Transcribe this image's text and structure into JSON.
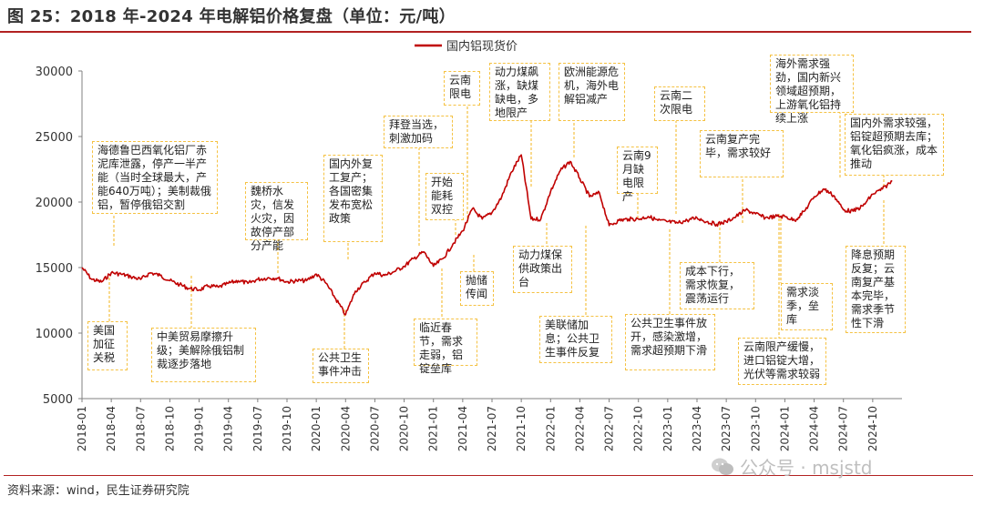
{
  "figure": {
    "title": "图 25：2018 年-2024 年电解铝价格复盘（单位：元/吨）",
    "source": "资料来源：wind，民生证券研究院",
    "watermark": "公众号 · msjstd"
  },
  "colors": {
    "series": "#c00000",
    "annotation_border": "#f5c243",
    "title_rule": "#b22222"
  },
  "chart_data": {
    "type": "line",
    "title": "图 25：2018 年-2024 年电解铝价格复盘（单位：元/吨）",
    "ylim": [
      5000,
      30000
    ],
    "yticks": [
      5000,
      10000,
      15000,
      20000,
      25000,
      30000
    ],
    "ytick_labels": [
      "5000",
      "10000",
      "15000",
      "20000",
      "25000",
      "30000"
    ],
    "xtick_labels": [
      "2018-01",
      "2018-04",
      "2018-07",
      "2018-10",
      "2019-01",
      "2019-04",
      "2019-07",
      "2019-10",
      "2020-01",
      "2020-04",
      "2020-07",
      "2020-10",
      "2021-01",
      "2021-04",
      "2021-07",
      "2021-10",
      "2022-01",
      "2022-04",
      "2022-07",
      "2022-10",
      "2023-01",
      "2023-04",
      "2023-07",
      "2023-10",
      "2024-01",
      "2024-04",
      "2024-07",
      "2024-10"
    ],
    "legend": {
      "placement": "top-center"
    },
    "grid": false,
    "series": [
      {
        "name": "国内铝现货价",
        "points": [
          [
            "2018-01",
            15000
          ],
          [
            "2018-02",
            14100
          ],
          [
            "2018-03",
            13900
          ],
          [
            "2018-04",
            14600
          ],
          [
            "2018-05",
            14500
          ],
          [
            "2018-06",
            14300
          ],
          [
            "2018-07",
            14100
          ],
          [
            "2018-08",
            14600
          ],
          [
            "2018-09",
            14400
          ],
          [
            "2018-10",
            14000
          ],
          [
            "2018-11",
            13700
          ],
          [
            "2018-12",
            13400
          ],
          [
            "2019-01",
            13300
          ],
          [
            "2019-02",
            13600
          ],
          [
            "2019-03",
            13500
          ],
          [
            "2019-04",
            13800
          ],
          [
            "2019-05",
            14000
          ],
          [
            "2019-06",
            13800
          ],
          [
            "2019-07",
            14100
          ],
          [
            "2019-08",
            14200
          ],
          [
            "2019-09",
            14200
          ],
          [
            "2019-10",
            13900
          ],
          [
            "2019-11",
            14000
          ],
          [
            "2019-12",
            14000
          ],
          [
            "2020-01",
            14500
          ],
          [
            "2020-02",
            13800
          ],
          [
            "2020-03",
            12600
          ],
          [
            "2020-04",
            11400
          ],
          [
            "2020-05",
            13200
          ],
          [
            "2020-06",
            13900
          ],
          [
            "2020-07",
            14600
          ],
          [
            "2020-08",
            14400
          ],
          [
            "2020-09",
            14700
          ],
          [
            "2020-10",
            15100
          ],
          [
            "2020-11",
            15700
          ],
          [
            "2020-12",
            16200
          ],
          [
            "2021-01",
            15100
          ],
          [
            "2021-02",
            15700
          ],
          [
            "2021-03",
            16800
          ],
          [
            "2021-04",
            17800
          ],
          [
            "2021-05",
            19500
          ],
          [
            "2021-06",
            18700
          ],
          [
            "2021-07",
            19200
          ],
          [
            "2021-08",
            20400
          ],
          [
            "2021-09",
            22300
          ],
          [
            "2021-10",
            23600
          ],
          [
            "2021-11",
            18700
          ],
          [
            "2021-12",
            18700
          ],
          [
            "2022-01",
            20800
          ],
          [
            "2022-02",
            22400
          ],
          [
            "2022-03",
            23100
          ],
          [
            "2022-04",
            21800
          ],
          [
            "2022-05",
            20400
          ],
          [
            "2022-06",
            20700
          ],
          [
            "2022-07",
            18200
          ],
          [
            "2022-08",
            18600
          ],
          [
            "2022-09",
            18700
          ],
          [
            "2022-10",
            18700
          ],
          [
            "2022-11",
            18900
          ],
          [
            "2022-12",
            18600
          ],
          [
            "2023-01",
            18500
          ],
          [
            "2023-02",
            18400
          ],
          [
            "2023-03",
            18600
          ],
          [
            "2023-04",
            18800
          ],
          [
            "2023-05",
            18500
          ],
          [
            "2023-06",
            18300
          ],
          [
            "2023-07",
            18500
          ],
          [
            "2023-08",
            18900
          ],
          [
            "2023-09",
            19400
          ],
          [
            "2023-10",
            19100
          ],
          [
            "2023-11",
            18800
          ],
          [
            "2023-12",
            18900
          ],
          [
            "2024-01",
            18900
          ],
          [
            "2024-02",
            18600
          ],
          [
            "2024-03",
            19300
          ],
          [
            "2024-04",
            20400
          ],
          [
            "2024-05",
            21000
          ],
          [
            "2024-06",
            20500
          ],
          [
            "2024-07",
            19400
          ],
          [
            "2024-08",
            19300
          ],
          [
            "2024-09",
            19700
          ],
          [
            "2024-10",
            20600
          ],
          [
            "2024-11",
            21000
          ],
          [
            "2024-12",
            21600
          ]
        ]
      }
    ],
    "annotations": [
      "海德鲁巴西氧化铝厂赤泥库泄露，停产一半产能（当时全球最大，产能640万吨）；美制裁俄铝，暂停俄铝交割",
      "美国加征关税",
      "中美贸易摩擦升级；美解除俄铝制裁逐步落地",
      "魏桥水灾，信发火灾，因故停产部分产能",
      "公共卫生事件冲击",
      "国内外复工复产；各国密集发布宽松政策",
      "拜登当选，刺激加码",
      "临近春节，需求走弱，铝锭垒库",
      "开始能耗双控",
      "抛储传闻",
      "云南限电",
      "动力煤飙涨，缺煤缺电，多地限产",
      "动力煤保供政策出台",
      "欧洲能源危机，海外电解铝减产",
      "美联储加息；公共卫生事件反复",
      "云南9月缺电限产",
      "公共卫生事件放开，感染激增，需求超预期下滑",
      "云南二次限电",
      "成本下行，需求恢复，震荡运行",
      "云南复产完毕，需求较好",
      "需求淡季，垒库",
      "云南限产缓慢，进口铝锭大增，光伏等需求较弱",
      "海外需求强劲，国内新兴领域超预期，上游氧化铝持续上涨",
      "国内外需求较强，铝锭超预期去库；氧化铝疯涨，成本推动",
      "降息预期反复；云南复产基本完毕，需求季节性下滑"
    ]
  }
}
